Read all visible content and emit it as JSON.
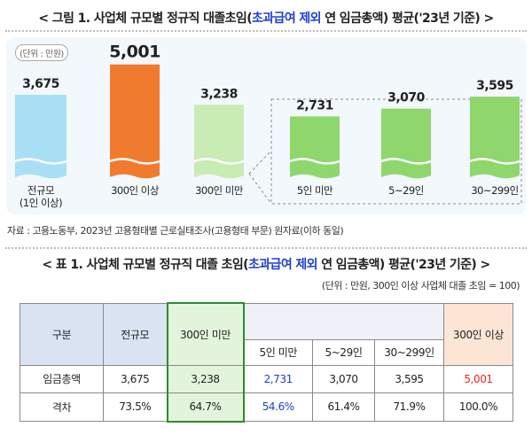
{
  "figure": {
    "title_prefix": "< 그림 1. 사업체 규모별 정규직 대졸초임(",
    "title_highlight": "초과급여 제외",
    "title_suffix": " 연 임금총액) 평균('23년 기준) >",
    "unit": "(단위 : 만원)",
    "source": "자료 : 고용노동부, 2023년 고용형태별 근로실태조사(고용형태 부문) 원자료(이하 동일)"
  },
  "chart_data": {
    "type": "bar",
    "categories": [
      "전규모\n(1인 이상)",
      "300인 이상",
      "300인 미만",
      "5인 미만",
      "5~29인",
      "30~299인"
    ],
    "values": [
      3675,
      5001,
      3238,
      2731,
      3070,
      3595
    ],
    "value_labels": [
      "3,675",
      "5,001",
      "3,238",
      "2,731",
      "3,070",
      "3,595"
    ],
    "colors": [
      "#a9dff5",
      "#f07b2e",
      "#c8ecb4",
      "#8fd66d",
      "#8fd66d",
      "#8fd66d"
    ],
    "ylim": [
      0,
      5300
    ],
    "grid": false,
    "legend": "none",
    "breakdown_of": "300인 미만",
    "breakdown_categories": [
      "5인 미만",
      "5~29인",
      "30~299인"
    ]
  },
  "table": {
    "title_prefix": "< 표 1. 사업체 규모별 정규직 대졸 초임(",
    "title_highlight": "초과급여 제외",
    "title_suffix": " 연 임금총액) 평균('23년 기준) >",
    "unit": "(단위 : 만원, 300인 이상 사업체 대졸 초임 = 100)",
    "header": {
      "col_category": "구분",
      "col_all": "전규모",
      "col_under300": "300인 미만",
      "col_under5": "5인 미만",
      "col_5_29": "5~29인",
      "col_30_299": "30~299인",
      "col_300plus": "300인 이상"
    },
    "rows": [
      {
        "label": "임금총액",
        "all": "3,675",
        "under300": "3,238",
        "under5": "2,731",
        "s5_29": "3,070",
        "s30_299": "3,595",
        "plus300": "5,001"
      },
      {
        "label": "격차",
        "all": "73.5%",
        "under300": "64.7%",
        "under5": "54.6%",
        "s5_29": "61.4%",
        "s30_299": "71.9%",
        "plus300": "100.0%"
      }
    ]
  }
}
